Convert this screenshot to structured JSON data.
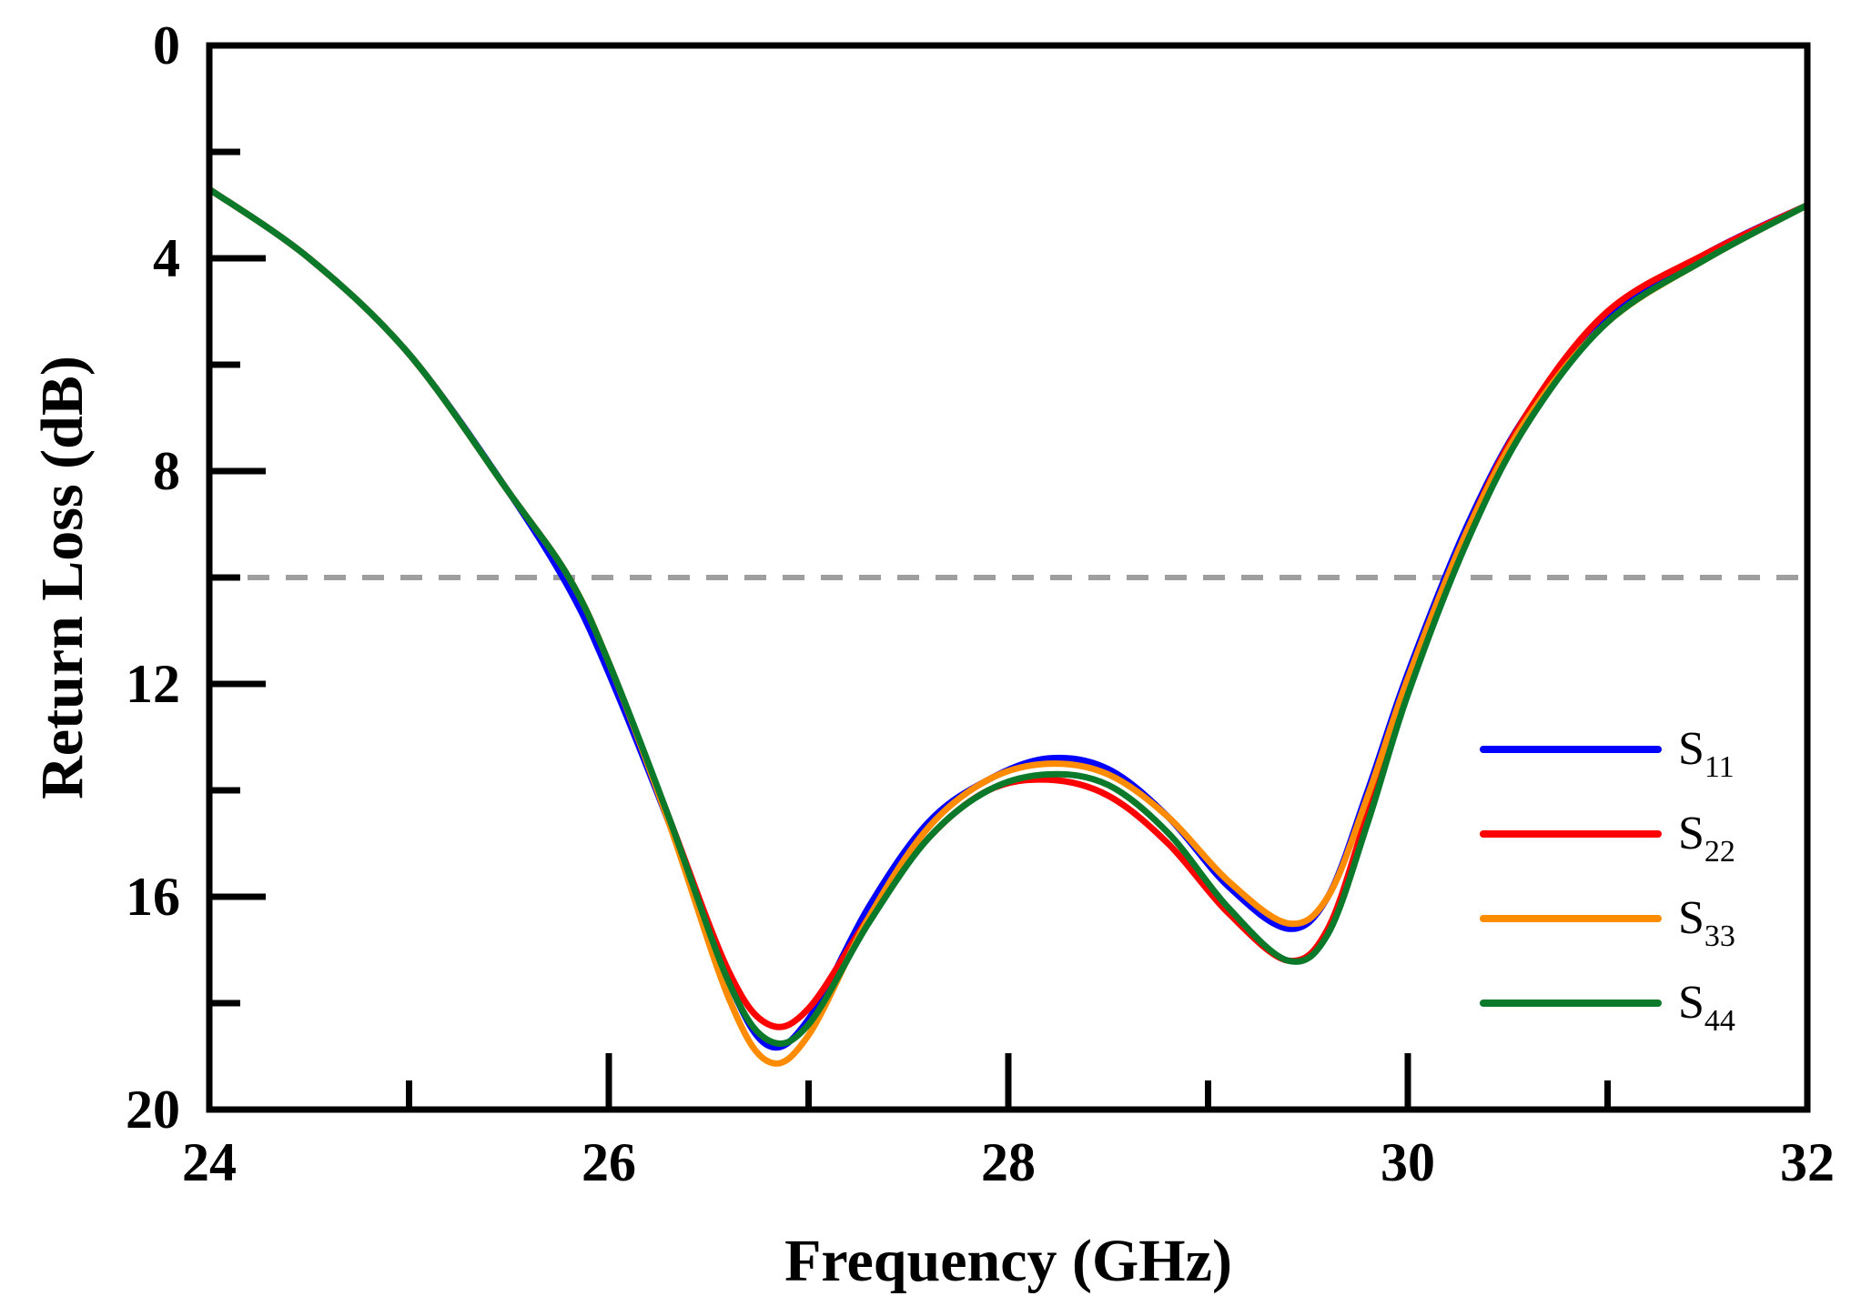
{
  "chart_data": {
    "type": "line",
    "title": "",
    "xlabel": "Frequency (GHz)",
    "ylabel": "Return Loss (dB)",
    "xlim": [
      24,
      32
    ],
    "ylim": [
      0,
      20
    ],
    "y_inverted": true,
    "x_ticks": [
      24,
      26,
      28,
      30,
      32
    ],
    "x_tick_labels": [
      "24",
      "26",
      "28",
      "30",
      "32"
    ],
    "x_minor_ticks": [
      25,
      27,
      29,
      31
    ],
    "y_ticks": [
      0,
      4,
      8,
      12,
      16,
      20
    ],
    "y_tick_labels": [
      "0",
      "4",
      "8",
      "12",
      "16",
      "20"
    ],
    "y_minor_ticks": [
      2,
      6,
      10,
      14,
      18
    ],
    "grid": false,
    "legend": "bottom-right",
    "reference_line": {
      "y": 10,
      "style": "dashed",
      "color": "#9e9e9e"
    },
    "x": [
      24.0,
      24.5,
      25.0,
      25.5,
      25.8,
      26.0,
      26.3,
      26.6,
      26.8,
      27.0,
      27.3,
      27.6,
      27.9,
      28.2,
      28.5,
      28.8,
      29.1,
      29.4,
      29.6,
      29.8,
      30.0,
      30.3,
      30.6,
      31.0,
      31.5,
      32.0
    ],
    "series": [
      {
        "name": "S11",
        "label_main": "S",
        "label_sub": "11",
        "color": "#0000ff",
        "values": [
          2.7,
          4.0,
          5.8,
          8.4,
          10.2,
          11.8,
          14.6,
          17.6,
          18.8,
          18.3,
          16.2,
          14.6,
          13.8,
          13.4,
          13.6,
          14.5,
          15.8,
          16.6,
          16.0,
          14.0,
          11.8,
          9.0,
          6.9,
          5.1,
          3.9,
          3.0
        ]
      },
      {
        "name": "S22",
        "label_main": "S",
        "label_sub": "22",
        "color": "#ff0000",
        "values": [
          2.7,
          4.0,
          5.8,
          8.4,
          10.0,
          11.6,
          14.5,
          17.4,
          18.4,
          18.1,
          16.4,
          14.9,
          14.0,
          13.8,
          14.1,
          15.0,
          16.3,
          17.2,
          16.6,
          14.4,
          12.0,
          9.1,
          6.9,
          5.0,
          3.9,
          3.0
        ]
      },
      {
        "name": "S33",
        "label_main": "S",
        "label_sub": "33",
        "color": "#ff8c00",
        "values": [
          2.7,
          4.0,
          5.8,
          8.4,
          10.0,
          11.6,
          14.6,
          17.9,
          19.1,
          18.6,
          16.4,
          14.7,
          13.8,
          13.5,
          13.7,
          14.5,
          15.7,
          16.5,
          16.0,
          14.1,
          11.9,
          9.1,
          7.0,
          5.2,
          4.0,
          3.0
        ]
      },
      {
        "name": "S44",
        "label_main": "S",
        "label_sub": "44",
        "color": "#0a7a2a",
        "values": [
          2.7,
          4.0,
          5.8,
          8.4,
          10.0,
          11.6,
          14.5,
          17.6,
          18.7,
          18.4,
          16.5,
          14.9,
          14.0,
          13.7,
          13.9,
          14.8,
          16.2,
          17.2,
          16.7,
          14.6,
          12.2,
          9.3,
          7.1,
          5.2,
          4.0,
          3.0
        ]
      }
    ]
  }
}
